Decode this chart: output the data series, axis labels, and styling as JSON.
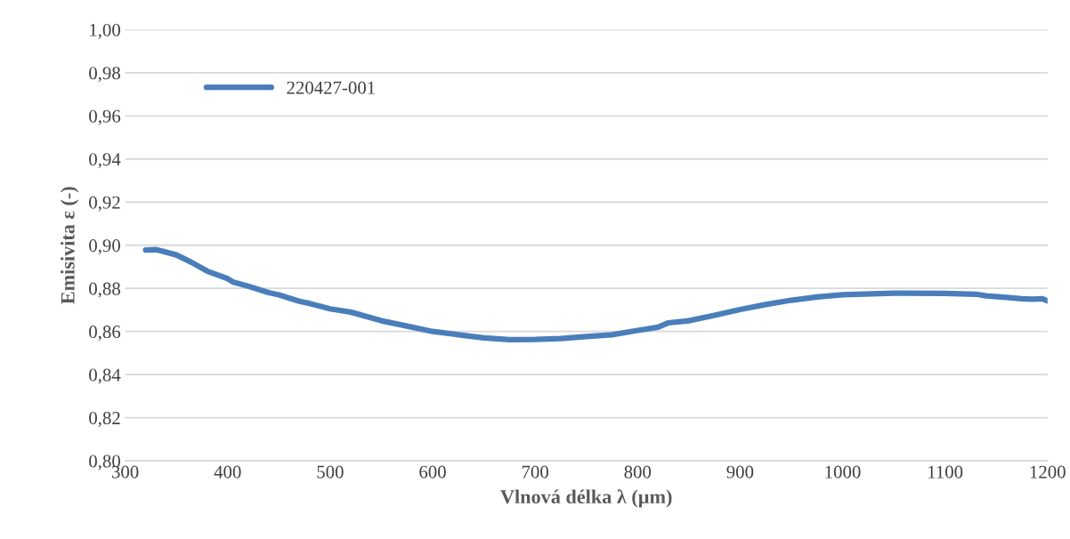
{
  "chart_data": {
    "type": "line",
    "xlabel": "Vlnová délka λ (µm)",
    "ylabel": "Emisivita ε (-)",
    "xlim": [
      300,
      1200
    ],
    "xticks": [
      300,
      400,
      500,
      600,
      700,
      800,
      900,
      1000,
      1100,
      1200
    ],
    "ylim": [
      0.8,
      1.0
    ],
    "yticks": [
      {
        "value": 0.8,
        "label": "0,80"
      },
      {
        "value": 0.82,
        "label": "0,82"
      },
      {
        "value": 0.84,
        "label": "0,84"
      },
      {
        "value": 0.86,
        "label": "0,86"
      },
      {
        "value": 0.88,
        "label": "0,88"
      },
      {
        "value": 0.9,
        "label": "0,90"
      },
      {
        "value": 0.92,
        "label": "0,92"
      },
      {
        "value": 0.94,
        "label": "0,94"
      },
      {
        "value": 0.96,
        "label": "0,96"
      },
      {
        "value": 0.98,
        "label": "0,98"
      },
      {
        "value": 1.0,
        "label": "1,00"
      }
    ],
    "grid": "y",
    "legend": "top left",
    "marker": "none",
    "line_style": "solid",
    "series": [
      {
        "name": "220427-001",
        "color": "#4a7ebb",
        "x": [
          320,
          330,
          350,
          365,
          380,
          400,
          405,
          420,
          440,
          450,
          470,
          480,
          500,
          520,
          550,
          575,
          600,
          625,
          650,
          675,
          700,
          725,
          750,
          775,
          800,
          820,
          830,
          850,
          875,
          900,
          925,
          950,
          975,
          1000,
          1050,
          1100,
          1130,
          1140,
          1160,
          1175,
          1185,
          1195,
          1200
        ],
        "values": [
          0.8978,
          0.898,
          0.8955,
          0.892,
          0.888,
          0.8845,
          0.883,
          0.881,
          0.878,
          0.877,
          0.874,
          0.873,
          0.8705,
          0.869,
          0.865,
          0.8625,
          0.86,
          0.8585,
          0.857,
          0.8562,
          0.8563,
          0.8567,
          0.8577,
          0.8585,
          0.8605,
          0.862,
          0.864,
          0.865,
          0.8675,
          0.8702,
          0.8725,
          0.8745,
          0.876,
          0.877,
          0.8778,
          0.8777,
          0.8773,
          0.8765,
          0.8758,
          0.8752,
          0.875,
          0.8752,
          0.8742
        ]
      }
    ]
  }
}
